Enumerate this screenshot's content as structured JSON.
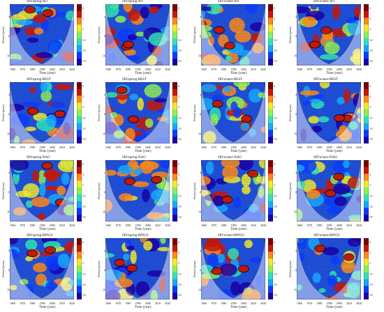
{
  "figure": {
    "xlabel": "Time (year)",
    "ylabel": "Period (year)",
    "xticks": [
      "1960",
      "1970",
      "1980",
      "1990",
      "2000",
      "2010",
      "2020"
    ],
    "yticks": [
      "4",
      "8",
      "16"
    ],
    "colorbar_ticks": [
      "6",
      "4",
      "2",
      "1/2",
      "1/4",
      "1/6"
    ],
    "panels": [
      {
        "title": "SPI/spring-AO"
      },
      {
        "title": "SPI/spring-AO"
      },
      {
        "title": "SPI/winter-AO"
      },
      {
        "title": "SPI/winter-AO"
      },
      {
        "title": "SPI/spring-BEST"
      },
      {
        "title": "SPI/spring-BEST"
      },
      {
        "title": "SPI/winter-BEST"
      },
      {
        "title": "SPI/winter-BEST"
      },
      {
        "title": "SPI/spring-NAO"
      },
      {
        "title": "SPI/spring-NAO"
      },
      {
        "title": "SPI/winter-NAO"
      },
      {
        "title": "SPI/winter-NAO"
      },
      {
        "title": "SPI/spring-RPN33"
      },
      {
        "title": "SPI/spring-RPN33"
      },
      {
        "title": "SPI/winter-RPN33"
      },
      {
        "title": "SPI/winter-RPN33"
      }
    ]
  },
  "colors": {
    "colormap": [
      "#1b00a8",
      "#0a3cff",
      "#19a8ff",
      "#31e3b6",
      "#8fef58",
      "#f2ea2c",
      "#ff8a1a",
      "#c81808",
      "#7a0000"
    ],
    "cone_shade": "#ffffff",
    "contour": "#000000",
    "arrows": "#111111"
  }
}
